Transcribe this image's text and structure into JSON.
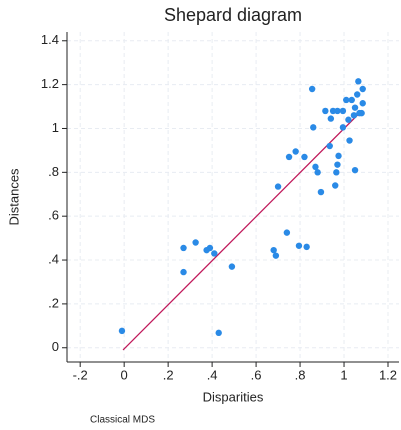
{
  "chart_data": {
    "type": "scatter",
    "title": "Shepard diagram",
    "x_label": "Disparities",
    "y_label": "Distances",
    "note": "Classical MDS",
    "x": [
      -0.01,
      0.27,
      0.27,
      0.325,
      0.375,
      0.39,
      0.41,
      0.43,
      0.49,
      0.68,
      0.69,
      0.7,
      0.74,
      0.75,
      0.78,
      0.795,
      0.82,
      0.83,
      0.855,
      0.86,
      0.87,
      0.88,
      0.895,
      0.915,
      0.935,
      0.94,
      0.95,
      0.96,
      0.965,
      0.97,
      0.97,
      0.975,
      0.995,
      0.995,
      1.01,
      1.02,
      1.025,
      1.035,
      1.045,
      1.05,
      1.05,
      1.06,
      1.065,
      1.07,
      1.08,
      1.085,
      1.085
    ],
    "values": [
      0.077,
      0.455,
      0.345,
      0.48,
      0.445,
      0.455,
      0.43,
      0.068,
      0.37,
      0.445,
      0.42,
      0.735,
      0.525,
      0.87,
      0.895,
      0.465,
      0.87,
      0.46,
      1.18,
      1.005,
      0.825,
      0.8,
      0.71,
      1.08,
      0.92,
      1.045,
      1.08,
      0.74,
      0.8,
      1.08,
      0.835,
      0.875,
      1.08,
      1.005,
      1.13,
      1.04,
      0.945,
      1.13,
      1.06,
      1.095,
      0.81,
      1.155,
      1.215,
      1.07,
      1.07,
      1.115,
      1.18
    ],
    "color": "#2a8ae6",
    "line_x": [
      -0.005,
      1.07
    ],
    "line_y": [
      -0.01,
      1.07
    ],
    "line_color": "#c0185a",
    "xlim": [
      -0.26,
      1.25
    ],
    "ylim": [
      -0.065,
      1.44
    ],
    "xticks": [
      {
        "value": -0.2,
        "label": "-.2"
      },
      0,
      {
        "value": 0.2,
        "label": ".2"
      },
      {
        "value": 0.4,
        "label": ".4"
      },
      {
        "value": 0.6,
        "label": ".6"
      },
      {
        "value": 0.8,
        "label": ".8"
      },
      1,
      1.2
    ],
    "yticks": [
      0,
      {
        "value": 0.2,
        "label": ".2"
      },
      {
        "value": 0.4,
        "label": ".4"
      },
      {
        "value": 0.6,
        "label": ".6"
      },
      {
        "value": 0.8,
        "label": ".8"
      },
      1,
      1.2,
      1.4
    ],
    "grid": true
  }
}
